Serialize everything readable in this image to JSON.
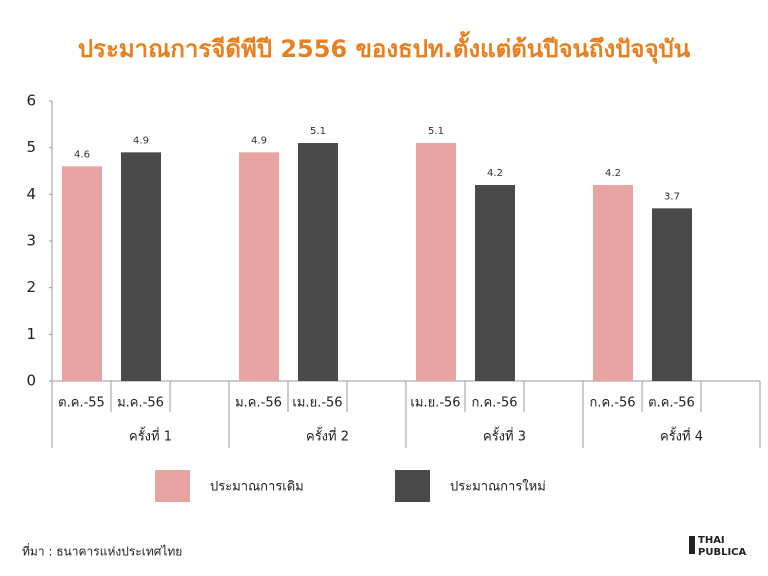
{
  "chart_data": {
    "type": "bar",
    "title": "ประมาณการจีดีพีปี 2556 ของธปท.ตั้งแต่ต้นปีจนถึงปัจจุบัน",
    "categories": [
      "ครั้งที่ 1",
      "ครั้งที่ 2",
      "ครั้งที่ 3",
      "ครั้งที่ 4"
    ],
    "sub_categories": [
      [
        "ต.ค.-55",
        "ม.ค.-56"
      ],
      [
        "ม.ค.-56",
        "เม.ย.-56"
      ],
      [
        "เม.ย.-56",
        "ก.ค.-56"
      ],
      [
        "ก.ค.-56",
        "ต.ค.-56"
      ]
    ],
    "series": [
      {
        "name": "ประมาณการเดิม",
        "color": "#e8a3a3",
        "values": [
          4.6,
          4.9,
          5.1,
          4.2
        ]
      },
      {
        "name": "ประมาณการใหม่",
        "color": "#4a4a4a",
        "values": [
          4.9,
          5.1,
          4.2,
          3.7
        ]
      }
    ],
    "ylim": [
      0,
      6
    ],
    "yticks": [
      0,
      1,
      2,
      3,
      4,
      5,
      6
    ],
    "legend": "bottom",
    "source": "ที่มา : ธนาคารแห่งประเทศไทย",
    "logo": [
      "THAI",
      "PUBLICA"
    ]
  }
}
